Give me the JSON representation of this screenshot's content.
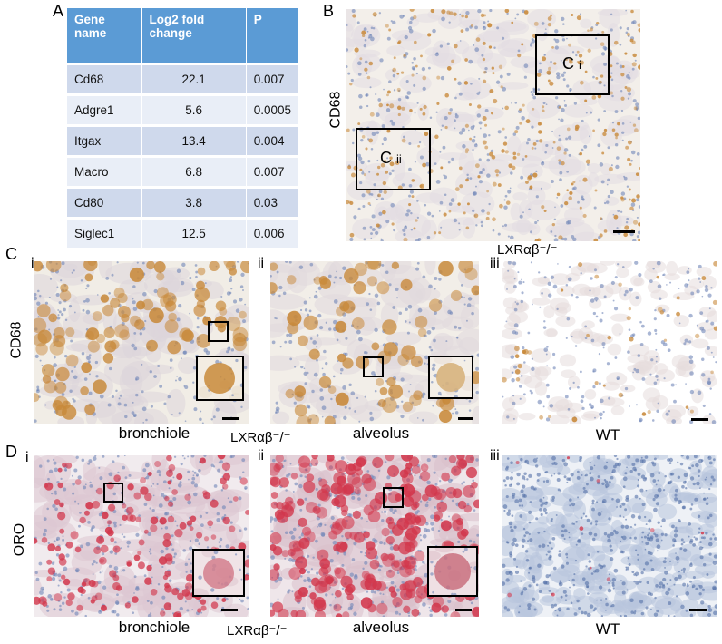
{
  "panel_letters": {
    "A": "A",
    "B": "B",
    "C": "C",
    "D": "D"
  },
  "table": {
    "headers": [
      "Gene\nname",
      "Log2 fold\nchange",
      "P"
    ],
    "rows": [
      [
        "Cd68",
        "22.1",
        "0.007"
      ],
      [
        "Adgre1",
        "5.6",
        "0.0005"
      ],
      [
        "Itgax",
        "13.4",
        "0.004"
      ],
      [
        "Macro",
        "6.8",
        "0.007"
      ],
      [
        "Cd80",
        "3.8",
        "0.03"
      ],
      [
        "Siglec1",
        "12.5",
        "0.006"
      ]
    ]
  },
  "stains": {
    "cd68": "CD68",
    "oro": "ORO"
  },
  "box_labels": {
    "ci_main": "C",
    "ci_sub": "i",
    "cii_main": "C",
    "cii_sub": "ii"
  },
  "genotypes": {
    "ko": "LXRαβ⁻/⁻",
    "wt": "WT"
  },
  "roman": {
    "i": "i",
    "ii": "ii",
    "iii": "iii"
  },
  "captions": {
    "c_i": "bronchiole",
    "c_ii": "alveolus",
    "c_iii": "WT",
    "d_i": "bronchiole",
    "d_ii": "alveolus",
    "d_iii": "WT"
  },
  "colors": {
    "table_header": "#5b9bd5",
    "row_dark": "#cfd9ec",
    "row_light": "#e9eef7",
    "cd68_stain": "#c8893a",
    "oro_stain": "#d2374c",
    "hematoxylin": "#6f86b8"
  }
}
